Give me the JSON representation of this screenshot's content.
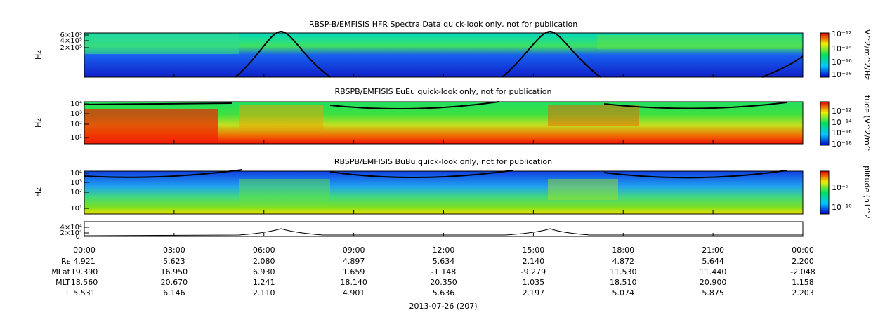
{
  "panels": [
    {
      "title": "RBSP-B/EMFISIS  HFR Spectra Data quick-look only, not for publication",
      "ylabel": "Hz",
      "yticks": [
        "6×10⁵",
        "4×10⁵",
        "2×10⁵"
      ],
      "colorbar_label": "V^2/m^2/Hz",
      "colorbar_ticks": [
        "10⁻¹²",
        "10⁻¹⁴",
        "10⁻¹⁶",
        "10⁻¹⁸"
      ]
    },
    {
      "title": "RBSPB/EMFISIS  EuEu quick-look only, not for publication",
      "ylabel": "Hz",
      "yticks": [
        "10⁴",
        "10³",
        "10²",
        "10¹"
      ],
      "colorbar_label": "tude (V^2/m^",
      "colorbar_ticks": [
        "10⁻¹²",
        "10⁻¹⁴",
        "10⁻¹⁶",
        "10⁻¹⁸"
      ]
    },
    {
      "title": "RBSPB/EMFISIS  BuBu quick-look only, not for publication",
      "ylabel": "Hz",
      "yticks": [
        "10⁴",
        "10³",
        "10²",
        "10¹"
      ],
      "colorbar_label": "plitude (nT^2",
      "colorbar_ticks": [
        "10⁻⁵",
        "10⁻¹⁰"
      ]
    },
    {
      "yticks": [
        "4×10⁴",
        "2×10⁴",
        "0."
      ]
    }
  ],
  "times": [
    "00:00",
    "03:00",
    "06:00",
    "09:00",
    "12:00",
    "15:00",
    "18:00",
    "21:00",
    "00:00"
  ],
  "ephemeris": [
    {
      "label": "Rᴇ",
      "values": [
        "4.921",
        "5.623",
        "2.080",
        "4.897",
        "5.634",
        "2.140",
        "4.872",
        "5.644",
        "2.200"
      ]
    },
    {
      "label": "MLat",
      "values": [
        "19.390",
        "16.950",
        "6.930",
        "1.659",
        "-1.148",
        "-9.279",
        "11.530",
        "11.440",
        "-2.048"
      ]
    },
    {
      "label": "MLT",
      "values": [
        "18.560",
        "20.670",
        "1.241",
        "18.140",
        "20.350",
        "1.035",
        "18.510",
        "20.900",
        "1.158"
      ]
    },
    {
      "label": "L",
      "values": [
        "5.531",
        "6.146",
        "2.110",
        "4.901",
        "5.636",
        "2.197",
        "5.074",
        "5.875",
        "2.203"
      ]
    }
  ],
  "date": "2013-07-26 (207)"
}
